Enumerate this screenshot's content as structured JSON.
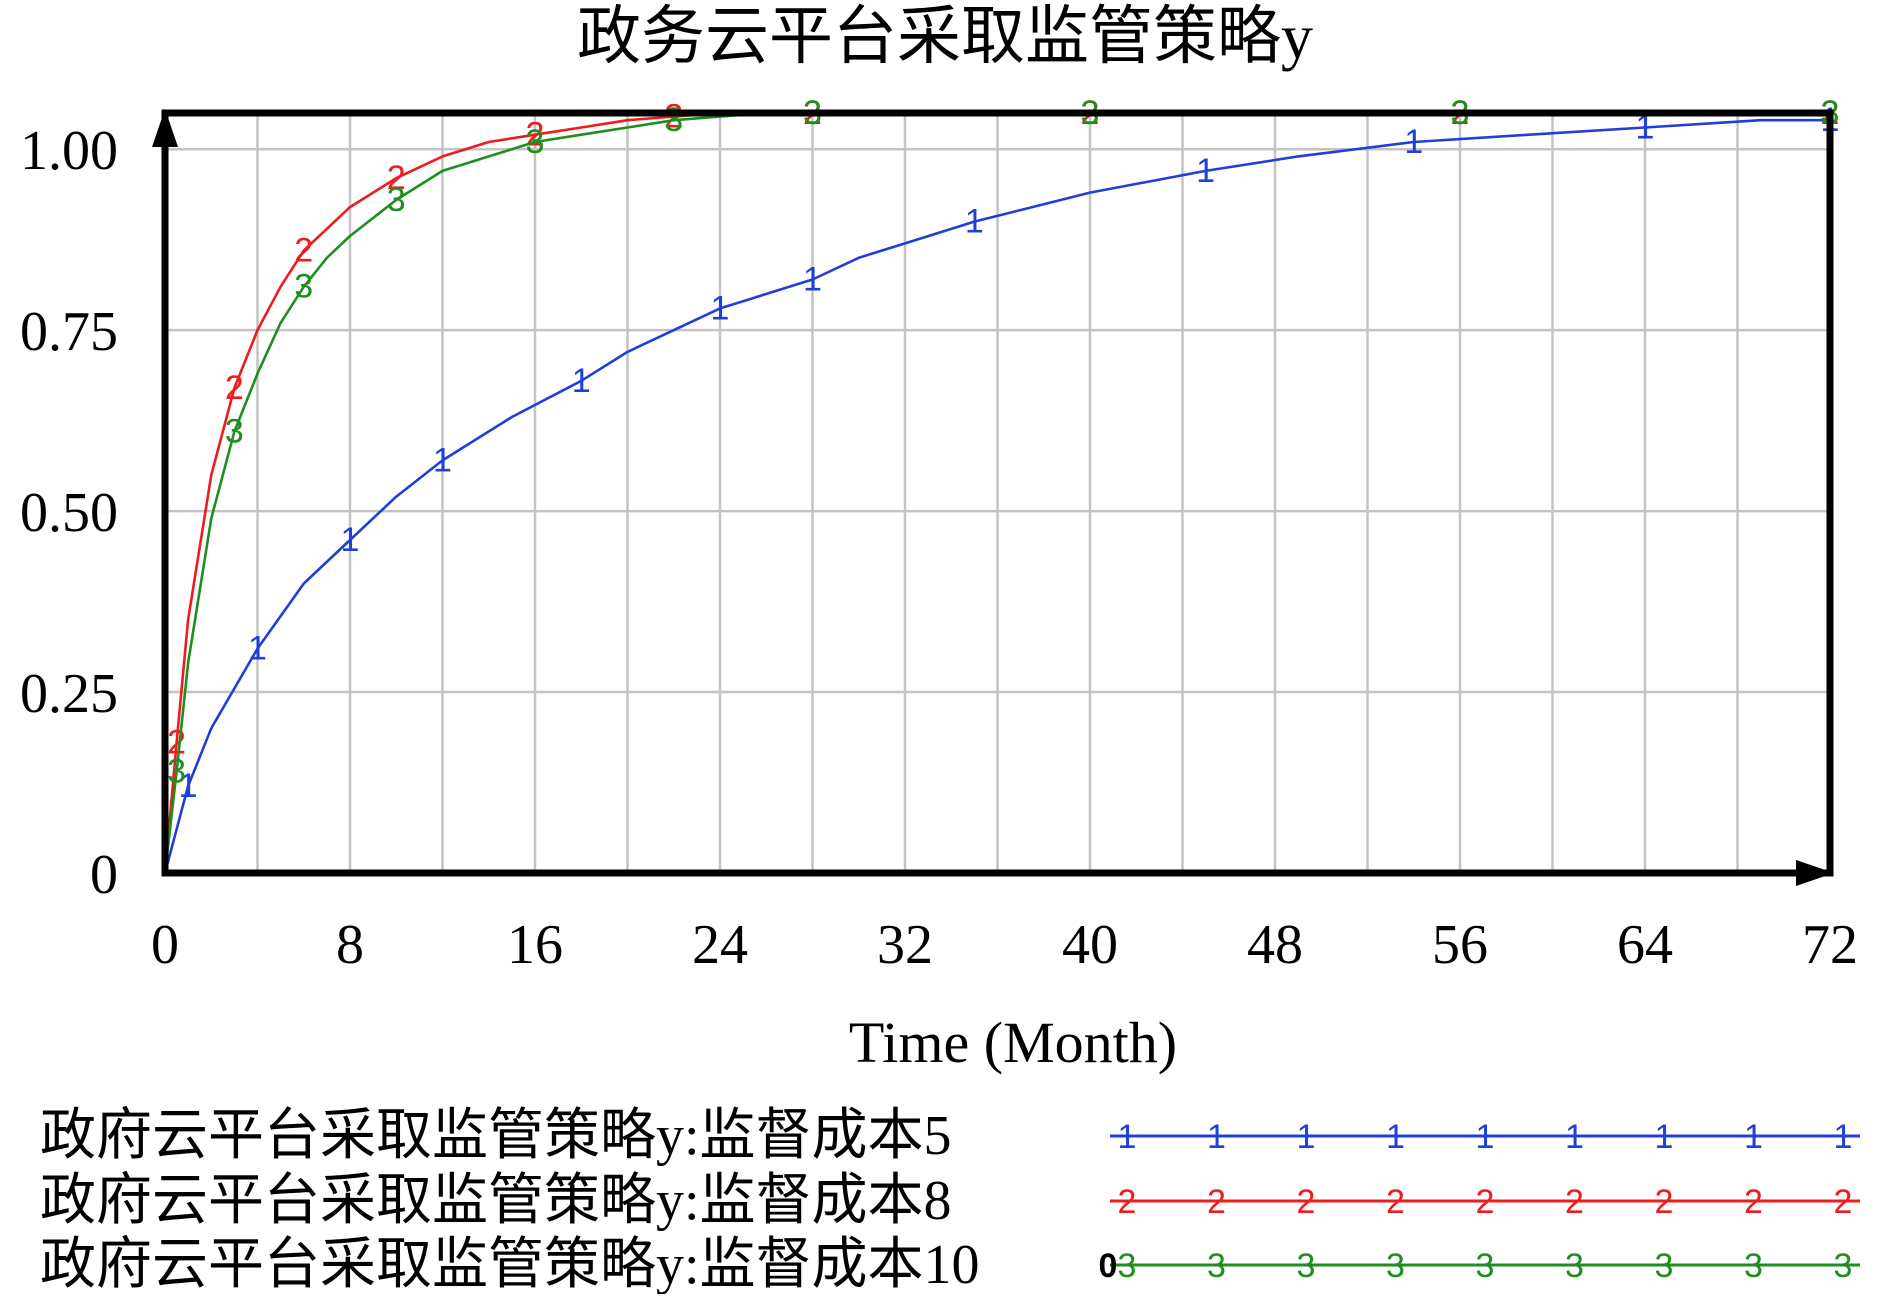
{
  "chart_data": {
    "type": "line",
    "title": "政务云平台采取监管策略y",
    "xlabel": "Time (Month)",
    "ylabel": "",
    "xlim": [
      0,
      72
    ],
    "ylim": [
      0,
      1.05
    ],
    "x_ticks": [
      "0",
      "8",
      "16",
      "24",
      "32",
      "40",
      "48",
      "56",
      "64",
      "72"
    ],
    "y_ticks": [
      "0",
      "0.25",
      "0.50",
      "0.75",
      "1.00"
    ],
    "grid": true,
    "legend_position": "bottom",
    "series": [
      {
        "name": "政府云平台采取监管策略y:监督成本5",
        "marker": "1",
        "color": "#1f3fd6",
        "x": [
          0,
          1,
          2,
          4,
          6,
          8,
          10,
          12,
          15,
          18,
          20,
          24,
          25,
          28,
          30,
          35,
          40,
          45,
          49,
          54,
          59,
          64,
          69,
          72
        ],
        "y": [
          0,
          0.12,
          0.2,
          0.31,
          0.4,
          0.46,
          0.52,
          0.57,
          0.63,
          0.68,
          0.72,
          0.78,
          0.79,
          0.82,
          0.85,
          0.9,
          0.94,
          0.97,
          0.99,
          1.01,
          1.02,
          1.03,
          1.04,
          1.04
        ]
      },
      {
        "name": "政府云平台采取监管策略y:监督成本8",
        "marker": "2",
        "color": "#ee1c1c",
        "x": [
          0,
          0.5,
          1,
          2,
          3,
          4,
          5,
          6,
          7,
          8,
          10,
          12,
          14,
          16,
          18,
          20,
          22,
          24,
          26,
          28,
          32,
          36,
          40,
          46,
          51,
          56,
          61,
          67,
          72
        ],
        "y": [
          0,
          0.18,
          0.35,
          0.55,
          0.67,
          0.75,
          0.81,
          0.86,
          0.89,
          0.92,
          0.96,
          0.99,
          1.01,
          1.02,
          1.03,
          1.04,
          1.045,
          1.05,
          1.05,
          1.05,
          1.05,
          1.05,
          1.05,
          1.05,
          1.05,
          1.05,
          1.05,
          1.05,
          1.05
        ]
      },
      {
        "name": "政府云平台采取监管策略y:监督成本10",
        "marker": "3",
        "color": "#1e8f1e",
        "x": [
          0,
          0.5,
          1,
          2,
          3,
          4,
          5,
          6,
          7,
          8,
          10,
          12,
          14,
          16,
          18,
          20,
          22,
          24,
          26,
          28,
          32,
          36,
          40,
          46,
          51,
          56,
          61,
          67,
          72
        ],
        "y": [
          0,
          0.14,
          0.29,
          0.49,
          0.61,
          0.69,
          0.76,
          0.81,
          0.85,
          0.88,
          0.93,
          0.97,
          0.99,
          1.01,
          1.02,
          1.03,
          1.04,
          1.045,
          1.05,
          1.05,
          1.05,
          1.05,
          1.05,
          1.05,
          1.05,
          1.05,
          1.05,
          1.05,
          1.05
        ]
      }
    ]
  },
  "legend": {
    "items": [
      {
        "label": "政府云平台采取监管策略y:监督成本5",
        "marker": "1",
        "color": "#1f3fd6",
        "lead_marker": ""
      },
      {
        "label": "政府云平台采取监管策略y:监督成本8",
        "marker": "2",
        "color": "#ee1c1c",
        "lead_marker": ""
      },
      {
        "label": "政府云平台采取监管策略y:监督成本10",
        "marker": "3",
        "color": "#1e8f1e",
        "lead_marker": "0"
      }
    ]
  }
}
